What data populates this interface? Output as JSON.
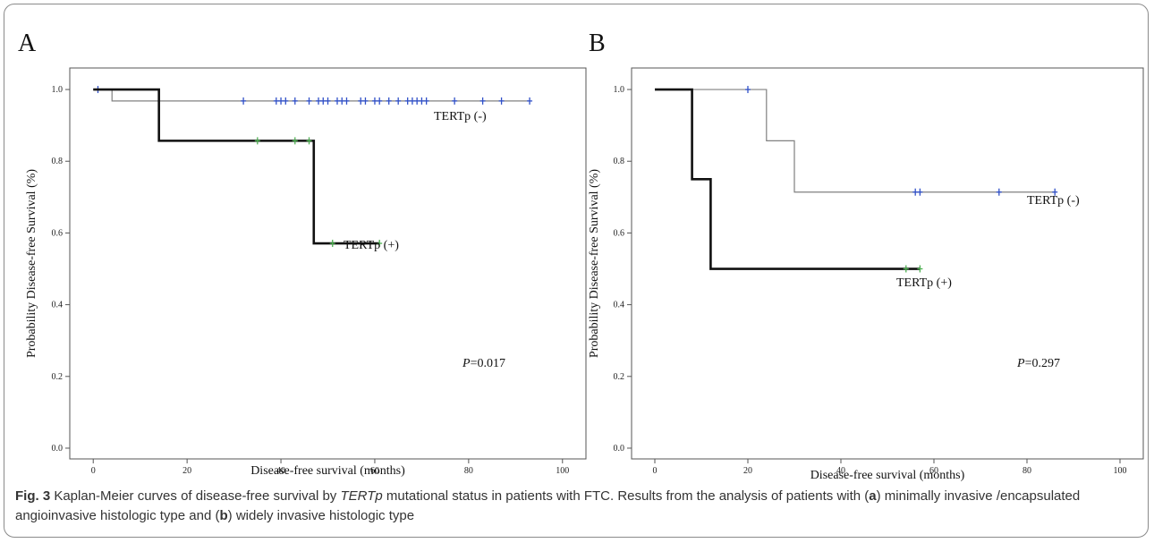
{
  "chart_data": [
    {
      "type": "line",
      "panel_label": "A",
      "xlabel": "Disease-free survival (months)",
      "ylabel": "Probability  Disease-free Survival (%)",
      "xlim": [
        -5,
        105
      ],
      "ylim": [
        -0.03,
        1.06
      ],
      "xticks": [
        0,
        20,
        40,
        60,
        80,
        100
      ],
      "yticks": [
        0.0,
        0.2,
        0.4,
        0.6,
        0.8,
        1.0
      ],
      "annotation": "P=0.017",
      "series": [
        {
          "name": "TERTp (-)",
          "color": "#808080",
          "censor_color": "#3050c8",
          "steps": [
            [
              0,
              1.0
            ],
            [
              4,
              0.968
            ],
            [
              93,
              0.968
            ]
          ],
          "censored": [
            [
              1,
              1.0
            ],
            [
              32,
              0.968
            ],
            [
              39,
              0.968
            ],
            [
              40,
              0.968
            ],
            [
              41,
              0.968
            ],
            [
              43,
              0.968
            ],
            [
              46,
              0.968
            ],
            [
              48,
              0.968
            ],
            [
              49,
              0.968
            ],
            [
              50,
              0.968
            ],
            [
              52,
              0.968
            ],
            [
              53,
              0.968
            ],
            [
              54,
              0.968
            ],
            [
              57,
              0.968
            ],
            [
              58,
              0.968
            ],
            [
              60,
              0.968
            ],
            [
              61,
              0.968
            ],
            [
              63,
              0.968
            ],
            [
              65,
              0.968
            ],
            [
              67,
              0.968
            ],
            [
              68,
              0.968
            ],
            [
              69,
              0.968
            ],
            [
              70,
              0.968
            ],
            [
              71,
              0.968
            ],
            [
              77,
              0.968
            ],
            [
              83,
              0.968
            ],
            [
              87,
              0.968
            ],
            [
              93,
              0.968
            ]
          ]
        },
        {
          "name": "TERTp (+)",
          "color": "#111111",
          "censor_color": "#4caf50",
          "steps": [
            [
              0,
              1.0
            ],
            [
              14,
              0.857
            ],
            [
              47,
              0.571
            ],
            [
              61,
              0.571
            ]
          ],
          "censored": [
            [
              35,
              0.857
            ],
            [
              43,
              0.857
            ],
            [
              46,
              0.857
            ],
            [
              51,
              0.571
            ],
            [
              61,
              0.571
            ]
          ]
        }
      ]
    },
    {
      "type": "line",
      "panel_label": "B",
      "xlabel": "Disease-free survival (months)",
      "ylabel": "Probability  Disease-free Survival (%)",
      "xlim": [
        -5,
        105
      ],
      "ylim": [
        -0.03,
        1.06
      ],
      "xticks": [
        0,
        20,
        40,
        60,
        80,
        100
      ],
      "yticks": [
        0.0,
        0.2,
        0.4,
        0.6,
        0.8,
        1.0
      ],
      "annotation": "P=0.297",
      "series": [
        {
          "name": "TERTp (-)",
          "color": "#808080",
          "censor_color": "#3050c8",
          "steps": [
            [
              0,
              1.0
            ],
            [
              24,
              0.857
            ],
            [
              30,
              0.714
            ],
            [
              86,
              0.714
            ]
          ],
          "censored": [
            [
              20,
              1.0
            ],
            [
              56,
              0.714
            ],
            [
              57,
              0.714
            ],
            [
              74,
              0.714
            ],
            [
              86,
              0.714
            ]
          ]
        },
        {
          "name": "TERTp (+)",
          "color": "#111111",
          "censor_color": "#4caf50",
          "steps": [
            [
              0,
              1.0
            ],
            [
              8,
              0.75
            ],
            [
              12,
              0.5
            ],
            [
              57,
              0.5
            ]
          ],
          "censored": [
            [
              54,
              0.5
            ],
            [
              57,
              0.5
            ]
          ]
        }
      ]
    }
  ],
  "caption": {
    "fig_label": "Fig. 3",
    "text_before_italic": " Kaplan-Meier curves of disease-free survival by ",
    "italic_gene": "TERTp",
    "text_after_italic": " mutational status in patients with FTC. Results from the analysis of patients with (",
    "letter_a": "a",
    "text_middle": ") minimally invasive /encapsulated angioinvasive histologic type and (",
    "letter_b": "b",
    "text_end": ") widely invasive histologic type"
  }
}
